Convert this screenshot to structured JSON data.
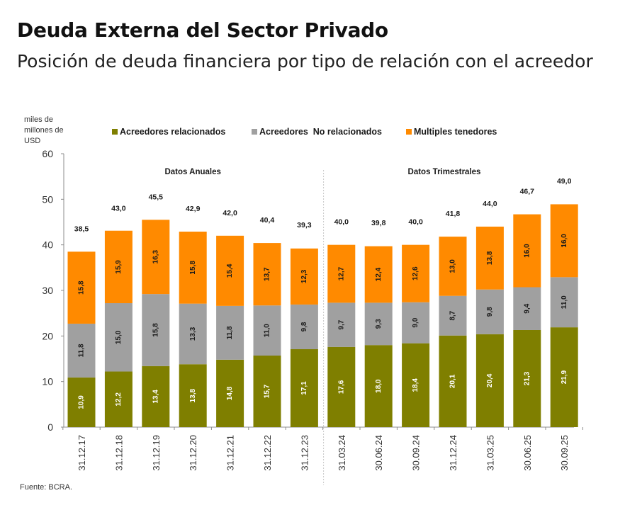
{
  "chart_data": {
    "type": "bar",
    "stacked": true,
    "title": "Deuda Externa del Sector Privado",
    "subtitle": "Posición de deuda financiera por tipo de relación con el acreedor",
    "ylabel": "miles de millones de USD",
    "xlabel": "",
    "ylim": [
      0,
      60
    ],
    "yticks": [
      "0",
      "10",
      "20",
      "30",
      "40",
      "50",
      "60"
    ],
    "ytick_values": [
      0,
      10,
      20,
      30,
      40,
      50,
      60
    ],
    "grid": false,
    "legend_position": "top",
    "categories": [
      "31.12.17",
      "31.12.18",
      "31.12.19",
      "31.12.20",
      "31.12.21",
      "31.12.22",
      "31.12.23",
      "31.03.24",
      "30.06.24",
      "30.09.24",
      "31.12.24",
      "31.03.25",
      "30.06.25",
      "30.09.25"
    ],
    "series": [
      {
        "name": "Acreedores relacionados",
        "color": "#7f7f00",
        "label_color": "#ffffff",
        "values": [
          10.9,
          12.2,
          13.4,
          13.8,
          14.8,
          15.7,
          17.1,
          17.6,
          18.0,
          18.4,
          20.1,
          20.4,
          21.3,
          21.9
        ],
        "labels": [
          "10,9",
          "12,2",
          "13,4",
          "13,8",
          "14,8",
          "15,7",
          "17,1",
          "17,6",
          "18,0",
          "18,4",
          "20,1",
          "20,4",
          "21,3",
          "21,9"
        ]
      },
      {
        "name": "Acreedores  No relacionados",
        "color": "#a0a0a0",
        "label_color": "#1a1a1a",
        "values": [
          11.8,
          15.0,
          15.8,
          13.3,
          11.8,
          11.0,
          9.8,
          9.7,
          9.3,
          9.0,
          8.7,
          9.8,
          9.4,
          11.0
        ],
        "labels": [
          "11,8",
          "15,0",
          "15,8",
          "13,3",
          "11,8",
          "11,0",
          "9,8",
          "9,7",
          "9,3",
          "9,0",
          "8,7",
          "9,8",
          "9,4",
          "11,0"
        ]
      },
      {
        "name": "Multiples tenedores",
        "color": "#ff8a00",
        "label_color": "#1a1a1a",
        "values": [
          15.8,
          15.9,
          16.3,
          15.8,
          15.4,
          13.7,
          12.3,
          12.7,
          12.4,
          12.6,
          13.0,
          13.8,
          16.0,
          16.0
        ],
        "labels": [
          "15,8",
          "15,9",
          "16,3",
          "15,8",
          "15,4",
          "13,7",
          "12,3",
          "12,7",
          "12,4",
          "12,6",
          "13,0",
          "13,8",
          "16,0",
          "16,0"
        ]
      }
    ],
    "totals": [
      38.5,
      43.0,
      45.5,
      42.9,
      42.0,
      40.4,
      39.3,
      40.0,
      39.8,
      40.0,
      41.8,
      44.0,
      46.7,
      49.0
    ],
    "total_labels": [
      "38,5",
      "43,0",
      "45,5",
      "42,9",
      "42,0",
      "40,4",
      "39,3",
      "40,0",
      "39,8",
      "40,0",
      "41,8",
      "44,0",
      "46,7",
      "49,0"
    ],
    "annotations": [
      {
        "text": "Datos Anuales",
        "spans": [
          "31.12.17",
          "31.12.23"
        ]
      },
      {
        "text": "Datos Trimestrales",
        "spans": [
          "31.03.24",
          "30.09.25"
        ]
      }
    ],
    "separator_after": "31.12.23",
    "source": "Fuente: BCRA."
  },
  "yaxis_unit": [
    "miles de",
    "millones de",
    "USD"
  ]
}
